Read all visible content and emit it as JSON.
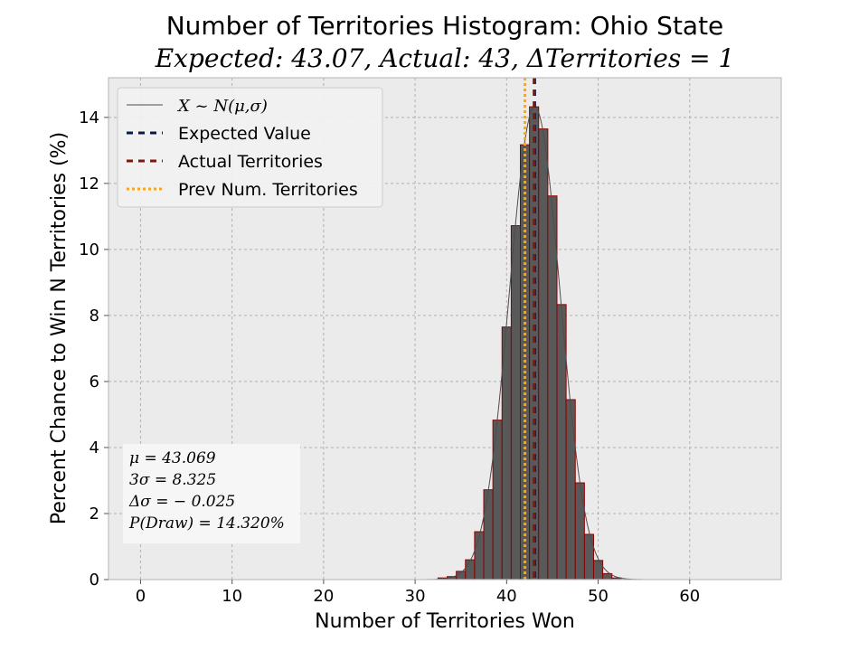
{
  "chart_data": {
    "type": "bar",
    "title": "Number of Territories Histogram: Ohio State",
    "subtitle": "Expected: 43.07, Actual: 43, ΔTerritories = 1",
    "xlabel": "Number of Territories Won",
    "ylabel": "Percent Chance to Win N Territories (%)",
    "xlim": [
      -3.5,
      70
    ],
    "ylim": [
      0,
      15.2
    ],
    "xticks": [
      0,
      10,
      20,
      30,
      40,
      50,
      60
    ],
    "yticks": [
      0,
      2,
      4,
      6,
      8,
      10,
      12,
      14
    ],
    "grid": true,
    "legend_position": "upper-left",
    "histogram": {
      "x": [
        33,
        34,
        35,
        36,
        37,
        38,
        39,
        40,
        41,
        42,
        43,
        44,
        45,
        46,
        47,
        48,
        49,
        50,
        51,
        52
      ],
      "values": [
        0.05,
        0.09,
        0.25,
        0.6,
        1.45,
        2.72,
        4.83,
        7.65,
        10.72,
        13.17,
        14.32,
        13.65,
        11.62,
        8.33,
        5.45,
        2.93,
        1.37,
        0.58,
        0.18,
        0.05
      ],
      "color": "#595959",
      "edgecolor": "#8b0000"
    },
    "normal_curve": {
      "label": "X ~ N(μ,σ)",
      "mu": 43.069,
      "sigma": 2.775,
      "x_range": [
        30,
        66
      ],
      "color": "#4d4d4d"
    },
    "vlines": [
      {
        "label": "Expected Value",
        "x": 43.07,
        "color": "#0a1a4a",
        "style": "dashed"
      },
      {
        "label": "Actual Territories",
        "x": 43,
        "color": "#7a1a0a",
        "style": "dashed"
      },
      {
        "label": "Prev Num. Territories",
        "x": 42,
        "color": "#f5a623",
        "style": "dotted"
      }
    ],
    "stats_box": [
      "μ = 43.069",
      "3σ = 8.325",
      "Δσ = − 0.025",
      "P(Draw) = 14.320%"
    ],
    "colors": {
      "plot_background": "#ebebeb",
      "grid": "#b0b0b0",
      "bar_face": "#595959",
      "bar_edge": "#8b0000"
    }
  }
}
